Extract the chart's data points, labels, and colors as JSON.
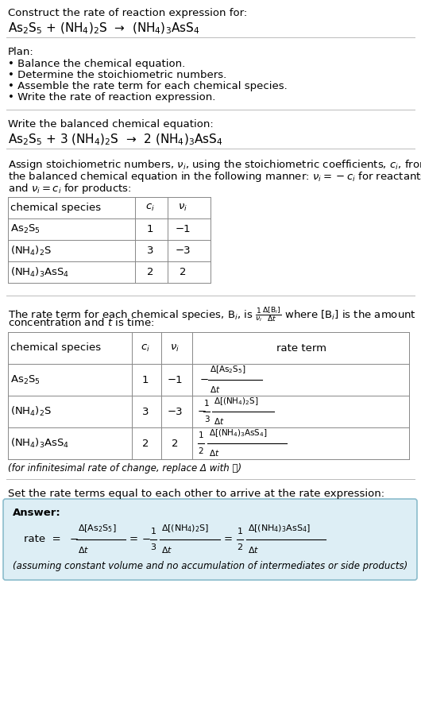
{
  "title_line1": "Construct the rate of reaction expression for:",
  "title_line2": "As$_2$S$_5$ + (NH$_4$)$_2$S  →  (NH$_4$)$_3$AsS$_4$",
  "plan_header": "Plan:",
  "plan_bullets": [
    "• Balance the chemical equation.",
    "• Determine the stoichiometric numbers.",
    "• Assemble the rate term for each chemical species.",
    "• Write the rate of reaction expression."
  ],
  "balanced_header": "Write the balanced chemical equation:",
  "balanced_eq": "As$_2$S$_5$ + 3 (NH$_4$)$_2$S  →  2 (NH$_4$)$_3$AsS$_4$",
  "stoich_intro_lines": [
    "Assign stoichiometric numbers, $\\nu_i$, using the stoichiometric coefficients, $c_i$, from",
    "the balanced chemical equation in the following manner: $\\nu_i = -c_i$ for reactants",
    "and $\\nu_i = c_i$ for products:"
  ],
  "table1_headers": [
    "chemical species",
    "$c_i$",
    "$\\nu_i$"
  ],
  "table1_rows": [
    [
      "As$_2$S$_5$",
      "1",
      "−1"
    ],
    [
      "(NH$_4$)$_2$S",
      "3",
      "−3"
    ],
    [
      "(NH$_4$)$_3$AsS$_4$",
      "2",
      "2"
    ]
  ],
  "rate_intro_lines": [
    "The rate term for each chemical species, B$_i$, is $\\frac{1}{\\nu_i}\\frac{\\Delta[\\mathrm{B}_i]}{\\Delta t}$ where [B$_i$] is the amount",
    "concentration and $t$ is time:"
  ],
  "table2_headers": [
    "chemical species",
    "$c_i$",
    "$\\nu_i$",
    "rate term"
  ],
  "table2_row0_species": "As$_2$S$_5$",
  "table2_row0_ci": "1",
  "table2_row0_nu": "−1",
  "table2_row0_rate_neg": "−",
  "table2_row0_rate_num": "$\\Delta$[As$_2$S$_5$]",
  "table2_row0_rate_den": "$\\Delta t$",
  "table2_row1_species": "(NH$_4$)$_2$S",
  "table2_row1_ci": "3",
  "table2_row1_nu": "−3",
  "table2_row1_rate_neg": "−",
  "table2_row1_rate_frac": "$\\frac{1}{3}$",
  "table2_row1_rate_num": "$\\Delta$[(NH$_4$)$_2$S]",
  "table2_row1_rate_den": "$\\Delta t$",
  "table2_row2_species": "(NH$_4$)$_3$AsS$_4$",
  "table2_row2_ci": "2",
  "table2_row2_nu": "2",
  "table2_row2_rate_frac": "$\\frac{1}{2}$",
  "table2_row2_rate_num": "$\\Delta$[(NH$_4$)$_3$AsS$_4$]",
  "table2_row2_rate_den": "$\\Delta t$",
  "infinitesimal_note": "(for infinitesimal rate of change, replace Δ with 𝑑)",
  "set_equal_text": "Set the rate terms equal to each other to arrive at the rate expression:",
  "answer_label": "Answer:",
  "answer_note": "(assuming constant volume and no accumulation of intermediates or side products)",
  "bg_color": "#ffffff",
  "answer_box_color": "#ddeef5",
  "answer_box_border": "#8bbccc",
  "text_color": "#000000",
  "separator_color": "#bbbbbb",
  "table_border_color": "#888888"
}
